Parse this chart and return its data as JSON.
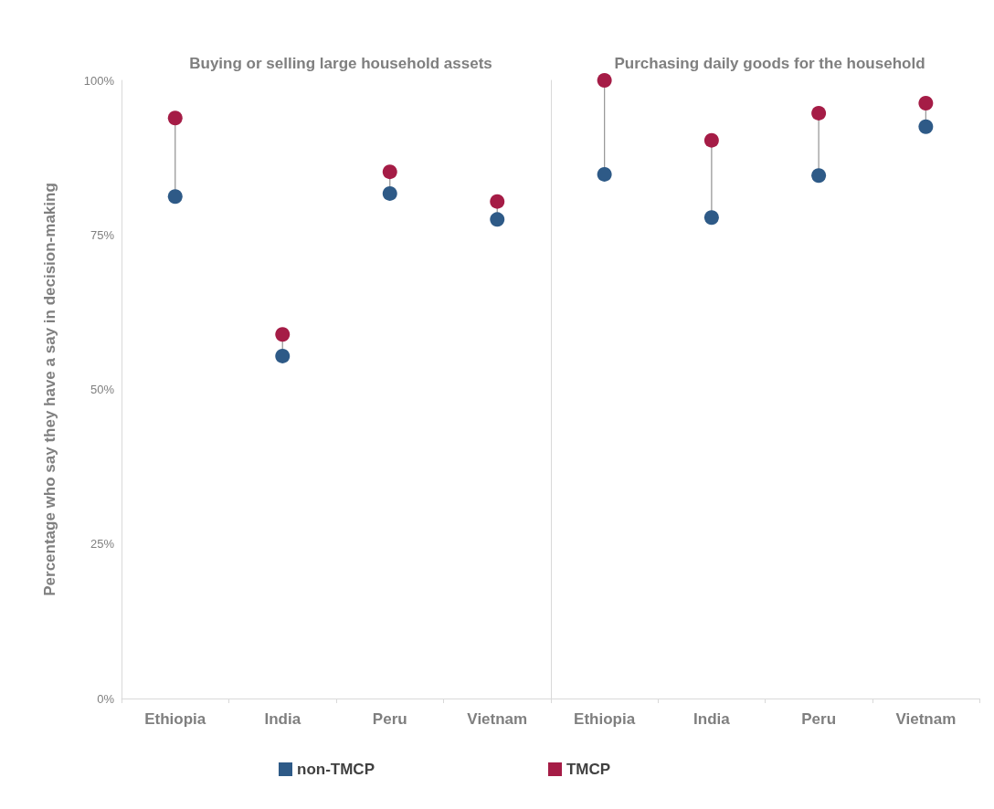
{
  "chart_data": [
    {
      "type": "scatter",
      "title": "Buying or selling large household assets",
      "ylabel": "Percentage who say they have a say in decision-making",
      "categories": [
        "Ethiopia",
        "India",
        "Peru",
        "Vietnam"
      ],
      "series": [
        {
          "name": "non-TMCP",
          "color": "#2e5a87",
          "values": [
            81.2,
            55.4,
            81.7,
            77.5
          ]
        },
        {
          "name": "TMCP",
          "color": "#a51c46",
          "values": [
            93.9,
            58.9,
            85.2,
            80.4
          ]
        }
      ],
      "ylim": [
        0,
        100
      ],
      "yticks": [
        {
          "value": 0,
          "label": "0%"
        },
        {
          "value": 25,
          "label": "25%"
        },
        {
          "value": 50,
          "label": "50%"
        },
        {
          "value": 75,
          "label": "75%"
        },
        {
          "value": 100,
          "label": "100%"
        }
      ],
      "marker": "circle",
      "grid": false,
      "legend": "bottom"
    },
    {
      "type": "scatter",
      "title": "Purchasing daily goods for the household",
      "categories": [
        "Ethiopia",
        "India",
        "Peru",
        "Vietnam"
      ],
      "series": [
        {
          "color": "#2e5a87",
          "values": [
            84.8,
            77.8,
            84.6,
            92.5
          ]
        },
        {
          "color": "#a51c46",
          "values": [
            100,
            90.3,
            94.7,
            96.3
          ]
        }
      ],
      "ylim": [
        0,
        100
      ],
      "marker": "circle",
      "grid": false,
      "tick_labels": "x"
    }
  ]
}
